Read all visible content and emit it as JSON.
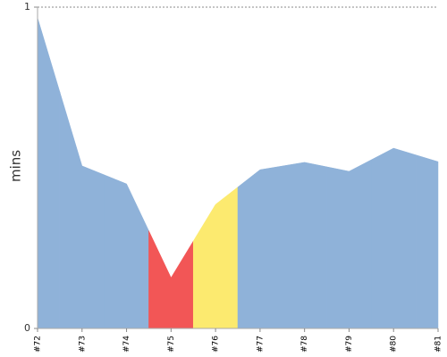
{
  "chart_data": {
    "type": "area",
    "y_label": "mins",
    "categories": [
      "#72",
      "#73",
      "#74",
      "#75",
      "#76",
      "#77",
      "#78",
      "#79",
      "#80",
      "#81"
    ],
    "values": [
      0.967,
      0.506,
      0.45,
      0.158,
      0.386,
      0.494,
      0.517,
      0.489,
      0.561,
      0.519
    ],
    "colors": [
      "#8fb2d9",
      "#8fb2d9",
      "#8fb2d9",
      "#f25656",
      "#fcea6f",
      "#8fb2d9",
      "#8fb2d9",
      "#8fb2d9",
      "#8fb2d9",
      "#8fb2d9"
    ],
    "ylim": [
      0,
      1
    ],
    "yticks": [
      0,
      1
    ],
    "grid": true
  }
}
